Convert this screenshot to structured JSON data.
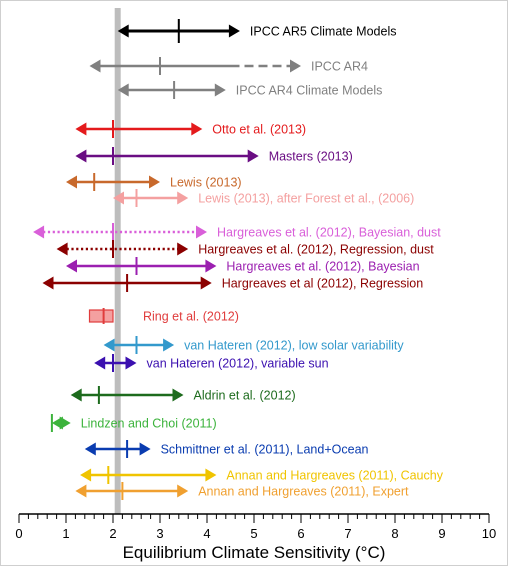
{
  "chart_data": {
    "type": "range",
    "xlabel": "Equilibrium Climate Sensitivity (°C)",
    "xlim": [
      0,
      10
    ],
    "x_ticks": [
      0,
      1,
      2,
      3,
      4,
      5,
      6,
      7,
      8,
      9,
      10
    ],
    "reference_line": {
      "x": 2.1,
      "color": "#bdbdbd"
    },
    "estimates": [
      {
        "label": "IPCC AR5 Climate Models",
        "low": 2.1,
        "best": 3.4,
        "high": 4.7,
        "color": "#000000",
        "style": "solid"
      },
      {
        "label": "IPCC AR4",
        "low": 1.5,
        "best": 3.0,
        "high": 6.0,
        "color": "#808080",
        "style": "solid-dashed",
        "solid_until": 4.5
      },
      {
        "label": "IPCC AR4 Climate Models",
        "low": 2.1,
        "best": 3.3,
        "high": 4.4,
        "color": "#808080",
        "style": "solid"
      },
      {
        "label": "Otto et al. (2013)",
        "low": 1.2,
        "best": 2.0,
        "high": 3.9,
        "color": "#e41a1c",
        "style": "solid"
      },
      {
        "label": "Masters (2013)",
        "low": 1.2,
        "best": 2.0,
        "high": 5.1,
        "color": "#6a0d83",
        "style": "solid"
      },
      {
        "label": "Lewis (2013)",
        "low": 1.0,
        "best": 1.6,
        "high": 3.0,
        "color": "#c8692c",
        "style": "solid"
      },
      {
        "label": "Lewis (2013), after Forest et al., (2006)",
        "low": 2.0,
        "best": 2.5,
        "high": 3.6,
        "color": "#f4a0a0",
        "style": "solid"
      },
      {
        "label": "Hargreaves et al. (2012), Bayesian, dust",
        "low": 0.3,
        "best": 2.0,
        "high": 4.0,
        "color": "#d95fd9",
        "style": "dotted"
      },
      {
        "label": "Hargreaves et al. (2012), Regression, dust",
        "low": 0.8,
        "best": 2.0,
        "high": 3.6,
        "color": "#8b0000",
        "style": "dotted"
      },
      {
        "label": "Hargreaves et al. (2012), Bayesian",
        "low": 1.0,
        "best": 2.5,
        "high": 4.2,
        "color": "#9b1fb0",
        "style": "solid"
      },
      {
        "label": "Hargreaves et al (2012), Regression",
        "low": 0.5,
        "best": 2.3,
        "high": 4.1,
        "color": "#8b0000",
        "style": "solid"
      },
      {
        "label": "Ring et al. (2012)",
        "low": 1.5,
        "best": 1.8,
        "high": 2.0,
        "color": "#e03c3c",
        "style": "box"
      },
      {
        "label": "van Hateren (2012), low solar variability",
        "low": 1.8,
        "best": 2.5,
        "high": 3.3,
        "color": "#3399cc",
        "style": "solid"
      },
      {
        "label": "van Hateren (2012), variable sun",
        "low": 1.6,
        "best": 2.0,
        "high": 2.5,
        "color": "#3b10b0",
        "style": "solid"
      },
      {
        "label": "Aldrin et al. (2012)",
        "low": 1.1,
        "best": 1.7,
        "high": 3.5,
        "color": "#1d6b1d",
        "style": "solid"
      },
      {
        "label": "Lindzen and Choi  (2011)",
        "low": 0.7,
        "best": 0.7,
        "high": 1.1,
        "color": "#3cb33c",
        "style": "solid"
      },
      {
        "label": "Schmittner et al.  (2011), Land+Ocean",
        "low": 1.4,
        "best": 2.3,
        "high": 2.8,
        "color": "#0a3cb0",
        "style": "solid"
      },
      {
        "label": "Annan and Hargreaves (2011), Cauchy",
        "low": 1.3,
        "best": 1.9,
        "high": 4.2,
        "color": "#f0c400",
        "style": "solid"
      },
      {
        "label": "Annan and Hargreaves (2011), Expert",
        "low": 1.2,
        "best": 2.2,
        "high": 3.6,
        "color": "#f0a030",
        "style": "solid"
      }
    ]
  }
}
